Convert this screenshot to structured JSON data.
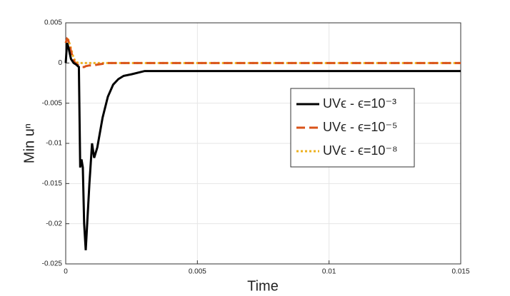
{
  "chart_data": {
    "type": "line",
    "xlabel": "Time",
    "ylabel": "Min uⁿ",
    "x": [
      0,
      5e-05,
      0.0001,
      0.0002,
      0.0003,
      0.0004,
      0.0005,
      0.00055,
      0.0006,
      0.00065,
      0.0007,
      0.00076,
      0.0009,
      0.001,
      0.00108,
      0.0012,
      0.0014,
      0.0016,
      0.0018,
      0.002,
      0.0022,
      0.0025,
      0.003,
      0.005,
      0.01,
      0.015
    ],
    "series": [
      {
        "name": "UVϵ - ϵ=10⁻³",
        "color": "#000000",
        "dash": "solid",
        "values": [
          0,
          0.0025,
          0.002,
          0.0005,
          0,
          -0.0002,
          -0.0005,
          -0.013,
          -0.012,
          -0.013,
          -0.02,
          -0.0233,
          -0.015,
          -0.01,
          -0.0118,
          -0.0105,
          -0.0068,
          -0.0042,
          -0.0027,
          -0.002,
          -0.0016,
          -0.0014,
          -0.001,
          -0.001,
          -0.001,
          -0.001
        ]
      },
      {
        "name": "UVϵ - ϵ=10⁻⁵",
        "color": "#d95319",
        "dash": "dashed",
        "values": [
          0.0025,
          0.003,
          0.0028,
          0.0015,
          0.0003,
          -0.0001,
          -0.0003,
          -0.0004,
          -0.0005,
          -0.0005,
          -0.0005,
          -0.0004,
          -0.0003,
          -0.0003,
          -0.0003,
          -0.0002,
          -0.0001,
          0,
          0,
          0,
          0,
          0,
          0,
          0,
          0,
          0
        ]
      },
      {
        "name": "UVϵ - ϵ=10⁻⁸",
        "color": "#edb120",
        "dash": "dotted",
        "values": [
          0.0025,
          0.003,
          0.0029,
          0.0018,
          0.0006,
          0.0001,
          0,
          0,
          0,
          0,
          0,
          0,
          0,
          0,
          0,
          0,
          0,
          0,
          0,
          0,
          0,
          0,
          0,
          0,
          0,
          0
        ]
      }
    ],
    "xlim": [
      0,
      0.015
    ],
    "xticks": [
      0,
      0.005,
      0.01,
      0.015
    ],
    "ylim": [
      -0.025,
      0.005
    ],
    "yticks": [
      -0.025,
      -0.02,
      -0.015,
      -0.01,
      -0.005,
      0,
      0.005
    ],
    "grid": true,
    "legend": "east"
  }
}
